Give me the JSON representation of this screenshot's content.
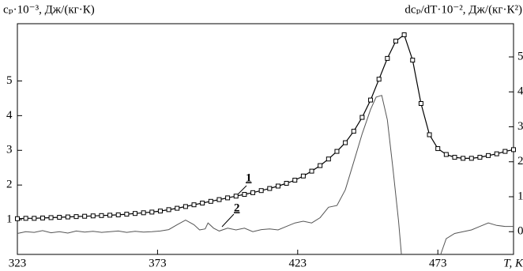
{
  "chart_data": {
    "type": "line",
    "y_label": "cₚ·10⁻³, Дж/(кг·К)",
    "y2_label": "dcₚ/dT·10⁻², Дж/(кг·К²)",
    "x_label": "T, K",
    "xlim": [
      323,
      500
    ],
    "xticks": [
      323,
      373,
      423,
      473
    ],
    "ylim": [
      0,
      6.65
    ],
    "yticks": [
      1,
      2,
      3,
      4,
      5
    ],
    "y2lim": [
      -0.65,
      5.95
    ],
    "y2ticks": [
      0,
      1,
      2,
      3,
      4,
      5
    ],
    "series": [
      {
        "name": "1",
        "color": "#000000",
        "marker": "square",
        "x": [
          323,
          326,
          329,
          332,
          335,
          338,
          341,
          344,
          347,
          350,
          353,
          356,
          359,
          362,
          365,
          368,
          371,
          374,
          377,
          380,
          383,
          386,
          389,
          392,
          395,
          398,
          401,
          404,
          407,
          410,
          413,
          416,
          419,
          422,
          425,
          428,
          431,
          434,
          437,
          440,
          443,
          446,
          449,
          452,
          455,
          458,
          461,
          464,
          467,
          470,
          473,
          476,
          479,
          482,
          485,
          488,
          491,
          494,
          497,
          500
        ],
        "values": [
          1.03,
          1.04,
          1.04,
          1.05,
          1.06,
          1.07,
          1.08,
          1.09,
          1.1,
          1.11,
          1.12,
          1.13,
          1.14,
          1.16,
          1.18,
          1.2,
          1.22,
          1.25,
          1.29,
          1.33,
          1.38,
          1.43,
          1.48,
          1.53,
          1.58,
          1.63,
          1.68,
          1.73,
          1.78,
          1.84,
          1.9,
          1.97,
          2.05,
          2.14,
          2.26,
          2.4,
          2.56,
          2.75,
          2.97,
          3.22,
          3.55,
          3.95,
          4.45,
          5.05,
          5.65,
          6.15,
          6.33,
          5.6,
          4.35,
          3.45,
          3.05,
          2.88,
          2.8,
          2.77,
          2.77,
          2.8,
          2.85,
          2.9,
          2.97,
          3.02
        ]
      },
      {
        "name": "2",
        "color": "#555555",
        "axis": "y2",
        "x": [
          323,
          326,
          329,
          332,
          335,
          338,
          341,
          344,
          347,
          350,
          353,
          356,
          359,
          362,
          365,
          368,
          371,
          374,
          377,
          380,
          383,
          386,
          388,
          390,
          391,
          393,
          395,
          398,
          401,
          404,
          407,
          410,
          413,
          416,
          419,
          422,
          425,
          428,
          431,
          434,
          437,
          440,
          443,
          446,
          449,
          451,
          453,
          455,
          457,
          459,
          460,
          467,
          474,
          476,
          479,
          482,
          485,
          488,
          491,
          494,
          497,
          500
        ],
        "values": [
          -0.05,
          0.0,
          -0.02,
          0.03,
          -0.03,
          0.0,
          -0.04,
          0.02,
          -0.01,
          0.01,
          -0.02,
          0.0,
          0.02,
          -0.02,
          0.01,
          -0.01,
          0.0,
          0.02,
          0.06,
          0.2,
          0.33,
          0.2,
          0.05,
          0.08,
          0.25,
          0.1,
          0.02,
          0.1,
          0.05,
          0.1,
          0.0,
          0.06,
          0.08,
          0.05,
          0.15,
          0.25,
          0.3,
          0.25,
          0.4,
          0.7,
          0.75,
          1.2,
          2.0,
          2.8,
          3.5,
          3.85,
          3.9,
          3.2,
          1.8,
          0.3,
          -0.65,
          null,
          -0.65,
          -0.2,
          -0.05,
          0.0,
          0.05,
          0.15,
          0.25,
          0.18,
          0.15,
          0.15
        ]
      }
    ]
  }
}
